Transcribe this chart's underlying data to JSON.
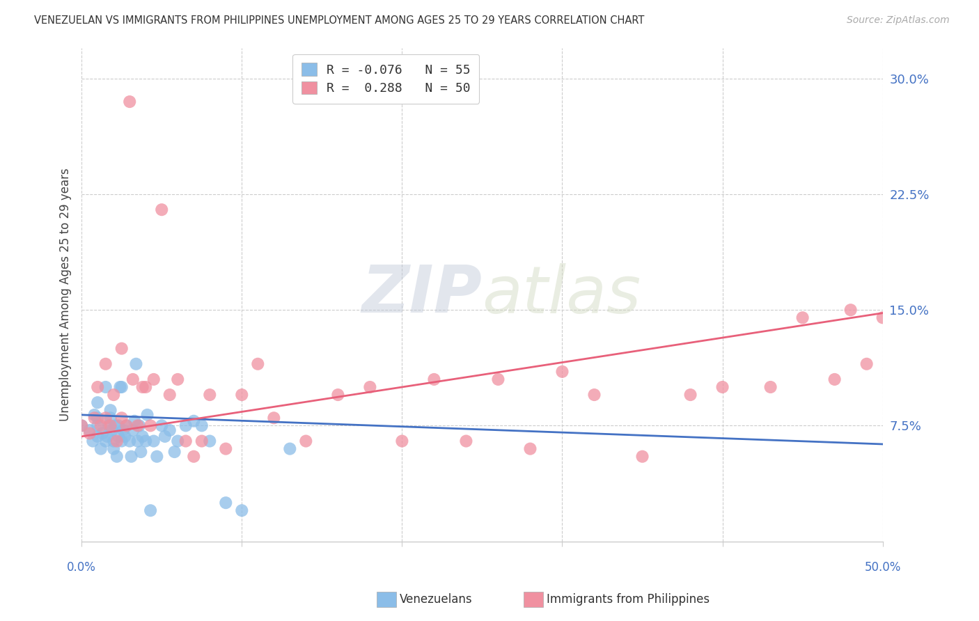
{
  "title": "VENEZUELAN VS IMMIGRANTS FROM PHILIPPINES UNEMPLOYMENT AMONG AGES 25 TO 29 YEARS CORRELATION CHART",
  "source": "Source: ZipAtlas.com",
  "ylabel": "Unemployment Among Ages 25 to 29 years",
  "xlim": [
    0.0,
    0.5
  ],
  "ylim": [
    0.0,
    0.32
  ],
  "yticks": [
    0.075,
    0.15,
    0.225,
    0.3
  ],
  "ytick_labels": [
    "7.5%",
    "15.0%",
    "22.5%",
    "30.0%"
  ],
  "xticks": [
    0.0,
    0.1,
    0.2,
    0.3,
    0.4,
    0.5
  ],
  "legend_r1": "R = -0.076",
  "legend_n1": "N = 55",
  "legend_r2": "R =  0.288",
  "legend_n2": "N = 50",
  "blue_color": "#8BBDE8",
  "pink_color": "#F090A0",
  "blue_line_color": "#4472C4",
  "pink_line_color": "#E8607A",
  "watermark_zip": "ZIP",
  "watermark_atlas": "atlas",
  "venezuelans_x": [
    0.0,
    0.005,
    0.007,
    0.008,
    0.01,
    0.01,
    0.01,
    0.01,
    0.012,
    0.013,
    0.015,
    0.015,
    0.016,
    0.017,
    0.018,
    0.018,
    0.019,
    0.02,
    0.02,
    0.021,
    0.022,
    0.023,
    0.023,
    0.024,
    0.025,
    0.025,
    0.026,
    0.027,
    0.028,
    0.03,
    0.031,
    0.032,
    0.033,
    0.034,
    0.035,
    0.036,
    0.037,
    0.038,
    0.04,
    0.041,
    0.043,
    0.045,
    0.047,
    0.05,
    0.052,
    0.055,
    0.058,
    0.06,
    0.065,
    0.07,
    0.075,
    0.08,
    0.09,
    0.1,
    0.13
  ],
  "venezuelans_y": [
    0.075,
    0.072,
    0.065,
    0.082,
    0.068,
    0.075,
    0.08,
    0.09,
    0.06,
    0.07,
    0.065,
    0.1,
    0.068,
    0.075,
    0.08,
    0.085,
    0.072,
    0.06,
    0.065,
    0.075,
    0.055,
    0.068,
    0.075,
    0.1,
    0.065,
    0.1,
    0.072,
    0.068,
    0.075,
    0.065,
    0.055,
    0.072,
    0.078,
    0.115,
    0.065,
    0.075,
    0.058,
    0.068,
    0.065,
    0.082,
    0.02,
    0.065,
    0.055,
    0.075,
    0.068,
    0.072,
    0.058,
    0.065,
    0.075,
    0.078,
    0.075,
    0.065,
    0.025,
    0.02,
    0.06
  ],
  "philippines_x": [
    0.0,
    0.005,
    0.008,
    0.01,
    0.012,
    0.015,
    0.015,
    0.018,
    0.02,
    0.022,
    0.025,
    0.025,
    0.028,
    0.03,
    0.032,
    0.035,
    0.038,
    0.04,
    0.043,
    0.045,
    0.05,
    0.055,
    0.06,
    0.065,
    0.07,
    0.075,
    0.08,
    0.09,
    0.1,
    0.11,
    0.12,
    0.14,
    0.16,
    0.18,
    0.2,
    0.22,
    0.24,
    0.26,
    0.28,
    0.3,
    0.32,
    0.35,
    0.38,
    0.4,
    0.43,
    0.45,
    0.47,
    0.48,
    0.49,
    0.5
  ],
  "philippines_y": [
    0.075,
    0.07,
    0.08,
    0.1,
    0.075,
    0.08,
    0.115,
    0.075,
    0.095,
    0.065,
    0.08,
    0.125,
    0.075,
    0.285,
    0.105,
    0.075,
    0.1,
    0.1,
    0.075,
    0.105,
    0.215,
    0.095,
    0.105,
    0.065,
    0.055,
    0.065,
    0.095,
    0.06,
    0.095,
    0.115,
    0.08,
    0.065,
    0.095,
    0.1,
    0.065,
    0.105,
    0.065,
    0.105,
    0.06,
    0.11,
    0.095,
    0.055,
    0.095,
    0.1,
    0.1,
    0.145,
    0.105,
    0.15,
    0.115,
    0.145
  ],
  "blue_trend_x": [
    0.0,
    0.5
  ],
  "blue_trend_y": [
    0.082,
    0.063
  ],
  "pink_trend_x": [
    0.0,
    0.5
  ],
  "pink_trend_y": [
    0.068,
    0.148
  ]
}
